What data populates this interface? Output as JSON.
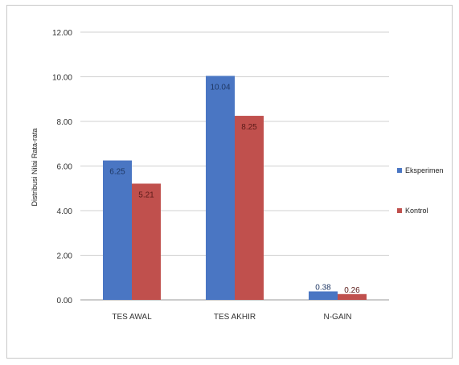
{
  "chart_data": {
    "type": "bar",
    "categories": [
      "TES AWAL",
      "TES AKHIR",
      "N-GAIN"
    ],
    "series": [
      {
        "name": "Eksperimen",
        "values": [
          6.25,
          10.04,
          0.38
        ],
        "labels": [
          "6.25",
          "10.04",
          "0.38"
        ],
        "color": "#4a76c3"
      },
      {
        "name": "Kontrol",
        "values": [
          5.21,
          8.25,
          0.26
        ],
        "labels": [
          "5.21",
          "8.25",
          "0.26"
        ],
        "color": "#c0504d"
      }
    ],
    "ylabel": "Distribusi Nilai Rata-rata",
    "ylim": [
      0,
      12
    ],
    "yticks": [
      "0.00",
      "2.00",
      "4.00",
      "6.00",
      "8.00",
      "10.00",
      "12.00"
    ],
    "grid": true,
    "legend_position": "right"
  }
}
